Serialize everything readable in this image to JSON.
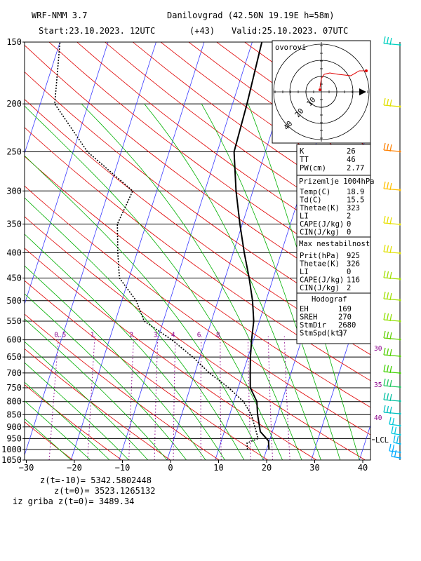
{
  "header": {
    "model": "WRF-NMM 3.7",
    "location": "Danilovgrad (42.50N 19.19E  h=58m)",
    "start": "Start:23.10.2023.  12UTC",
    "lead": "(+43)",
    "valid": "Valid:25.10.2023.  07UTC"
  },
  "chart_data": {
    "type": "line",
    "title": "",
    "xlabel": "",
    "ylabel": "",
    "x_ticks": [
      -30,
      -20,
      -10,
      0,
      10,
      20,
      30,
      40
    ],
    "pressure_levels": [
      150,
      200,
      250,
      300,
      350,
      400,
      450,
      500,
      550,
      600,
      650,
      700,
      750,
      800,
      850,
      900,
      950,
      1000,
      1050
    ],
    "xlim": [
      -30,
      42
    ],
    "ylim": [
      1050,
      150
    ],
    "series": [
      {
        "name": "",
        "color": "#000000",
        "style": "solid",
        "points": [
          [
            20.5,
            1000
          ],
          [
            19.8,
            960
          ],
          [
            17.5,
            920
          ],
          [
            15.8,
            850
          ],
          [
            14.8,
            800
          ],
          [
            12.5,
            750
          ],
          [
            11.5,
            700
          ],
          [
            10.5,
            650
          ],
          [
            9.6,
            600
          ],
          [
            8.8,
            550
          ],
          [
            7.2,
            500
          ],
          [
            5,
            450
          ],
          [
            2.3,
            400
          ],
          [
            -0.5,
            350
          ],
          [
            -3.5,
            300
          ],
          [
            -6.5,
            250
          ],
          [
            -7,
            200
          ],
          [
            -8,
            150
          ]
        ]
      },
      {
        "name": "",
        "color": "#000000",
        "style": "dotted",
        "points": [
          [
            16,
            1000
          ],
          [
            15.5,
            970
          ],
          [
            17.5,
            950
          ],
          [
            14.5,
            850
          ],
          [
            12,
            800
          ],
          [
            8,
            750
          ],
          [
            3,
            700
          ],
          [
            -1.5,
            650
          ],
          [
            -7,
            600
          ],
          [
            -14,
            550
          ],
          [
            -17,
            500
          ],
          [
            -22,
            450
          ],
          [
            -24,
            400
          ],
          [
            -26,
            350
          ],
          [
            -25,
            300
          ],
          [
            -37,
            250
          ],
          [
            -47,
            200
          ],
          [
            -50,
            150
          ]
        ]
      }
    ],
    "mixing_ratio_labels": [
      "0.5",
      "1",
      "2",
      "3",
      "4",
      "6",
      "8"
    ],
    "wind_labels": [
      "30",
      "35",
      "40"
    ],
    "lcl_label": "LCL"
  },
  "hodograph": {
    "title": "ovorovi",
    "ring_labels": [
      "10",
      "20",
      "40"
    ]
  },
  "indices": {
    "rows": [
      {
        "label": "K",
        "value": "26"
      },
      {
        "label": "TT",
        "value": "46"
      },
      {
        "label": "PW(cm)",
        "value": "2.77"
      }
    ]
  },
  "surface": {
    "title": "Prizemlje 1004hPa",
    "rows": [
      {
        "label": "Temp(C)",
        "value": "18.9"
      },
      {
        "label": "Td(C)",
        "value": "15.5"
      },
      {
        "label": "Thetae(K)",
        "value": "323"
      },
      {
        "label": "LI",
        "value": "2"
      },
      {
        "label": "CAPE(J/kg)",
        "value": "0"
      },
      {
        "label": "CIN(J/kg)",
        "value": "0"
      }
    ]
  },
  "max_instability": {
    "title": "Max nestabilnost",
    "rows": [
      {
        "label": "Prit(hPa)",
        "value": "925"
      },
      {
        "label": "Thetae(K)",
        "value": "326"
      },
      {
        "label": "LI",
        "value": "0"
      },
      {
        "label": "CAPE(J/kg)",
        "value": "116"
      },
      {
        "label": "CIN(J/kg)",
        "value": "2"
      }
    ]
  },
  "hodograf": {
    "title": "Hodograf",
    "rows": [
      {
        "label": "EH",
        "value": "169"
      },
      {
        "label": "SREH",
        "value": "270"
      },
      {
        "label": "StmDir",
        "value": "2680"
      },
      {
        "label": "StmSpd(kt)",
        "value": "37"
      }
    ]
  },
  "footer": {
    "line1": "z(t=-10)= 5342.5802448",
    "line2": "z(t=0)=  3523.1265132",
    "line3": "iz griba z(t=0)= 3489.34"
  },
  "colors": {
    "isotherm": "#3a3aff",
    "dry_adiabat": "#e00000",
    "moist_adiabat": "#00b000",
    "mixing_ratio": "#8b008b",
    "hodo_trace": "#e00000"
  }
}
